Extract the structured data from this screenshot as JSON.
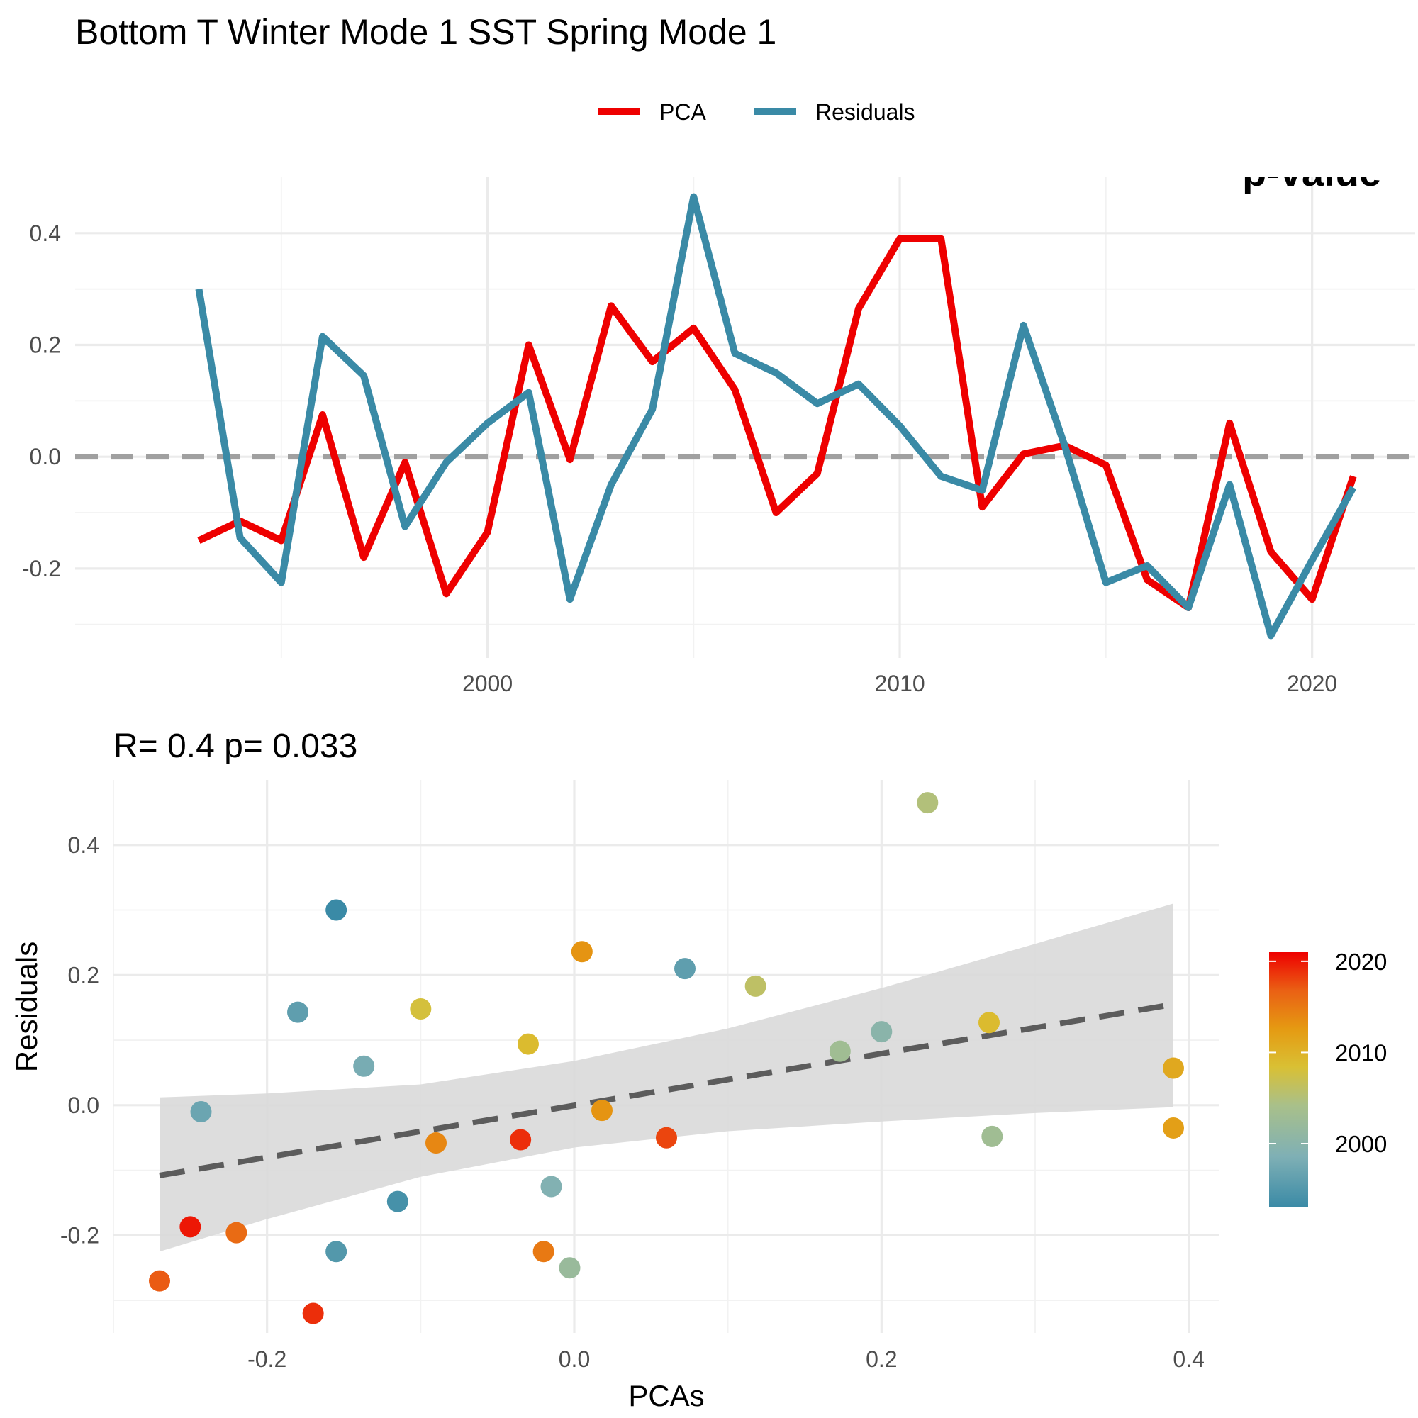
{
  "title": "Bottom T Winter Mode 1 SST Spring Mode 1",
  "chart_data": [
    {
      "type": "line",
      "title": "Bottom T Winter Mode 1 SST Spring Mode 1",
      "xlabel": "",
      "ylabel": "",
      "x_ticks": [
        2000,
        2010,
        2020
      ],
      "y_ticks": [
        -0.2,
        0.0,
        0.2,
        0.4
      ],
      "xlim": [
        1990,
        2022.5
      ],
      "ylim": [
        -0.36,
        0.5
      ],
      "legend_position": "top",
      "reference_line": {
        "y": 0,
        "style": "dashed"
      },
      "clipped_annotation": "p-value",
      "x": [
        1993,
        1994,
        1995,
        1996,
        1997,
        1998,
        1999,
        2000,
        2001,
        2002,
        2003,
        2004,
        2005,
        2006,
        2007,
        2008,
        2009,
        2010,
        2011,
        2012,
        2013,
        2014,
        2015,
        2016,
        2017,
        2018,
        2019,
        2020,
        2021
      ],
      "series": [
        {
          "name": "PCA",
          "color": "#ee0000",
          "values": [
            -0.15,
            -0.115,
            -0.15,
            0.075,
            -0.18,
            -0.01,
            -0.245,
            -0.135,
            0.2,
            -0.005,
            0.27,
            0.17,
            0.23,
            0.12,
            -0.1,
            -0.03,
            0.265,
            0.39,
            0.39,
            -0.09,
            0.005,
            0.02,
            -0.015,
            -0.22,
            -0.27,
            0.06,
            -0.17,
            -0.255,
            -0.035
          ]
        },
        {
          "name": "Residuals",
          "color": "#3a8aa6",
          "values": [
            0.3,
            -0.145,
            -0.225,
            0.215,
            0.145,
            -0.125,
            -0.01,
            0.06,
            0.115,
            -0.255,
            -0.05,
            0.085,
            0.465,
            0.185,
            0.15,
            0.095,
            0.13,
            0.055,
            -0.035,
            -0.06,
            0.235,
            0.02,
            -0.225,
            -0.195,
            -0.27,
            -0.05,
            -0.32,
            -0.185,
            -0.055
          ]
        }
      ]
    },
    {
      "type": "scatter",
      "title": "R= 0.4  p= 0.033",
      "xlabel": "PCAs",
      "ylabel": "Residuals",
      "x_ticks": [
        -0.2,
        0.0,
        0.2,
        0.4
      ],
      "y_ticks": [
        -0.2,
        0.0,
        0.2,
        0.4
      ],
      "xlim": [
        -0.3,
        0.42
      ],
      "ylim": [
        -0.35,
        0.5
      ],
      "color_scale": {
        "title": "",
        "ticks": [
          2000,
          2010,
          2020
        ],
        "range": [
          1993,
          2021
        ]
      },
      "fit_line": {
        "style": "dashed",
        "x": [
          -0.27,
          0.39
        ],
        "y": [
          -0.108,
          0.155
        ]
      },
      "confidence_band": {
        "x": [
          -0.27,
          -0.2,
          -0.1,
          0.0,
          0.1,
          0.2,
          0.3,
          0.39
        ],
        "lower": [
          -0.225,
          -0.175,
          -0.11,
          -0.065,
          -0.04,
          -0.025,
          -0.012,
          -0.003
        ],
        "upper": [
          0.012,
          0.018,
          0.032,
          0.068,
          0.118,
          0.18,
          0.248,
          0.31
        ]
      },
      "points": [
        {
          "x": -0.155,
          "y": 0.3,
          "year": 1993
        },
        {
          "x": -0.18,
          "y": 0.143,
          "year": 1996
        },
        {
          "x": -0.137,
          "y": 0.06,
          "year": 1998
        },
        {
          "x": -0.243,
          "y": -0.01,
          "year": 1997
        },
        {
          "x": -0.115,
          "y": -0.148,
          "year": 1994
        },
        {
          "x": -0.155,
          "y": -0.225,
          "year": 1995
        },
        {
          "x": -0.1,
          "y": 0.148,
          "year": 2008
        },
        {
          "x": -0.03,
          "y": 0.094,
          "year": 2009
        },
        {
          "x": -0.09,
          "y": -0.058,
          "year": 2014
        },
        {
          "x": -0.035,
          "y": -0.053,
          "year": 2019
        },
        {
          "x": -0.015,
          "y": -0.125,
          "year": 1999
        },
        {
          "x": -0.02,
          "y": -0.225,
          "year": 2015
        },
        {
          "x": -0.003,
          "y": -0.25,
          "year": 2002
        },
        {
          "x": 0.005,
          "y": 0.236,
          "year": 2013
        },
        {
          "x": 0.018,
          "y": -0.008,
          "year": 2013
        },
        {
          "x": 0.06,
          "y": -0.05,
          "year": 2018
        },
        {
          "x": 0.072,
          "y": 0.21,
          "year": 1996
        },
        {
          "x": 0.118,
          "y": 0.183,
          "year": 2006
        },
        {
          "x": -0.25,
          "y": -0.187,
          "year": 2020
        },
        {
          "x": -0.22,
          "y": -0.196,
          "year": 2016
        },
        {
          "x": -0.27,
          "y": -0.27,
          "year": 2017
        },
        {
          "x": -0.17,
          "y": -0.32,
          "year": 2019
        },
        {
          "x": 0.173,
          "y": 0.083,
          "year": 2003
        },
        {
          "x": 0.2,
          "y": 0.113,
          "year": 2000
        },
        {
          "x": 0.23,
          "y": 0.465,
          "year": 2005
        },
        {
          "x": 0.27,
          "y": 0.127,
          "year": 2009
        },
        {
          "x": 0.272,
          "y": -0.048,
          "year": 2003
        },
        {
          "x": 0.39,
          "y": 0.057,
          "year": 2011
        },
        {
          "x": 0.39,
          "y": -0.035,
          "year": 2012
        }
      ]
    }
  ]
}
